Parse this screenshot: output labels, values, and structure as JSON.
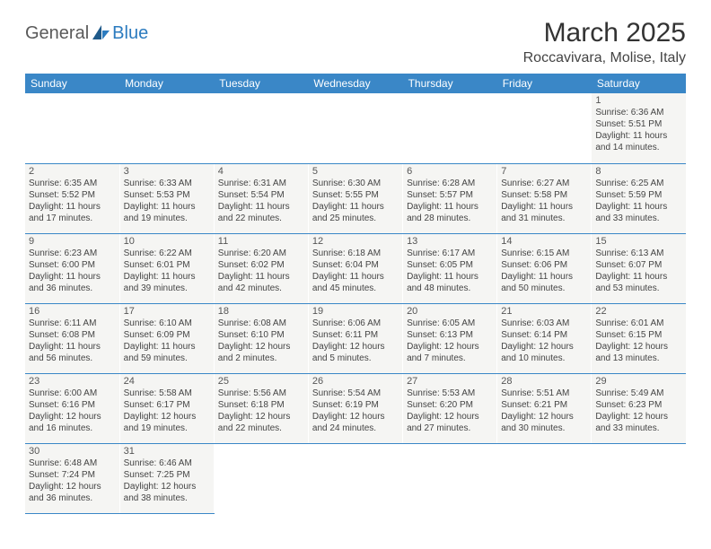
{
  "logo": {
    "text1": "General",
    "text2": "Blue"
  },
  "title": "March 2025",
  "location": "Roccavivara, Molise, Italy",
  "colors": {
    "header_bg": "#3a87c7",
    "header_text": "#ffffff",
    "cell_bg": "#f5f5f3",
    "text": "#444444",
    "border": "#3a87c7"
  },
  "dayNames": [
    "Sunday",
    "Monday",
    "Tuesday",
    "Wednesday",
    "Thursday",
    "Friday",
    "Saturday"
  ],
  "leadingBlanks": 6,
  "days": [
    {
      "n": 1,
      "sunrise": "6:36 AM",
      "sunset": "5:51 PM",
      "daylight": "11 hours and 14 minutes."
    },
    {
      "n": 2,
      "sunrise": "6:35 AM",
      "sunset": "5:52 PM",
      "daylight": "11 hours and 17 minutes."
    },
    {
      "n": 3,
      "sunrise": "6:33 AM",
      "sunset": "5:53 PM",
      "daylight": "11 hours and 19 minutes."
    },
    {
      "n": 4,
      "sunrise": "6:31 AM",
      "sunset": "5:54 PM",
      "daylight": "11 hours and 22 minutes."
    },
    {
      "n": 5,
      "sunrise": "6:30 AM",
      "sunset": "5:55 PM",
      "daylight": "11 hours and 25 minutes."
    },
    {
      "n": 6,
      "sunrise": "6:28 AM",
      "sunset": "5:57 PM",
      "daylight": "11 hours and 28 minutes."
    },
    {
      "n": 7,
      "sunrise": "6:27 AM",
      "sunset": "5:58 PM",
      "daylight": "11 hours and 31 minutes."
    },
    {
      "n": 8,
      "sunrise": "6:25 AM",
      "sunset": "5:59 PM",
      "daylight": "11 hours and 33 minutes."
    },
    {
      "n": 9,
      "sunrise": "6:23 AM",
      "sunset": "6:00 PM",
      "daylight": "11 hours and 36 minutes."
    },
    {
      "n": 10,
      "sunrise": "6:22 AM",
      "sunset": "6:01 PM",
      "daylight": "11 hours and 39 minutes."
    },
    {
      "n": 11,
      "sunrise": "6:20 AM",
      "sunset": "6:02 PM",
      "daylight": "11 hours and 42 minutes."
    },
    {
      "n": 12,
      "sunrise": "6:18 AM",
      "sunset": "6:04 PM",
      "daylight": "11 hours and 45 minutes."
    },
    {
      "n": 13,
      "sunrise": "6:17 AM",
      "sunset": "6:05 PM",
      "daylight": "11 hours and 48 minutes."
    },
    {
      "n": 14,
      "sunrise": "6:15 AM",
      "sunset": "6:06 PM",
      "daylight": "11 hours and 50 minutes."
    },
    {
      "n": 15,
      "sunrise": "6:13 AM",
      "sunset": "6:07 PM",
      "daylight": "11 hours and 53 minutes."
    },
    {
      "n": 16,
      "sunrise": "6:11 AM",
      "sunset": "6:08 PM",
      "daylight": "11 hours and 56 minutes."
    },
    {
      "n": 17,
      "sunrise": "6:10 AM",
      "sunset": "6:09 PM",
      "daylight": "11 hours and 59 minutes."
    },
    {
      "n": 18,
      "sunrise": "6:08 AM",
      "sunset": "6:10 PM",
      "daylight": "12 hours and 2 minutes."
    },
    {
      "n": 19,
      "sunrise": "6:06 AM",
      "sunset": "6:11 PM",
      "daylight": "12 hours and 5 minutes."
    },
    {
      "n": 20,
      "sunrise": "6:05 AM",
      "sunset": "6:13 PM",
      "daylight": "12 hours and 7 minutes."
    },
    {
      "n": 21,
      "sunrise": "6:03 AM",
      "sunset": "6:14 PM",
      "daylight": "12 hours and 10 minutes."
    },
    {
      "n": 22,
      "sunrise": "6:01 AM",
      "sunset": "6:15 PM",
      "daylight": "12 hours and 13 minutes."
    },
    {
      "n": 23,
      "sunrise": "6:00 AM",
      "sunset": "6:16 PM",
      "daylight": "12 hours and 16 minutes."
    },
    {
      "n": 24,
      "sunrise": "5:58 AM",
      "sunset": "6:17 PM",
      "daylight": "12 hours and 19 minutes."
    },
    {
      "n": 25,
      "sunrise": "5:56 AM",
      "sunset": "6:18 PM",
      "daylight": "12 hours and 22 minutes."
    },
    {
      "n": 26,
      "sunrise": "5:54 AM",
      "sunset": "6:19 PM",
      "daylight": "12 hours and 24 minutes."
    },
    {
      "n": 27,
      "sunrise": "5:53 AM",
      "sunset": "6:20 PM",
      "daylight": "12 hours and 27 minutes."
    },
    {
      "n": 28,
      "sunrise": "5:51 AM",
      "sunset": "6:21 PM",
      "daylight": "12 hours and 30 minutes."
    },
    {
      "n": 29,
      "sunrise": "5:49 AM",
      "sunset": "6:23 PM",
      "daylight": "12 hours and 33 minutes."
    },
    {
      "n": 30,
      "sunrise": "6:48 AM",
      "sunset": "7:24 PM",
      "daylight": "12 hours and 36 minutes."
    },
    {
      "n": 31,
      "sunrise": "6:46 AM",
      "sunset": "7:25 PM",
      "daylight": "12 hours and 38 minutes."
    }
  ],
  "labels": {
    "sunrise": "Sunrise:",
    "sunset": "Sunset:",
    "daylight": "Daylight:"
  }
}
